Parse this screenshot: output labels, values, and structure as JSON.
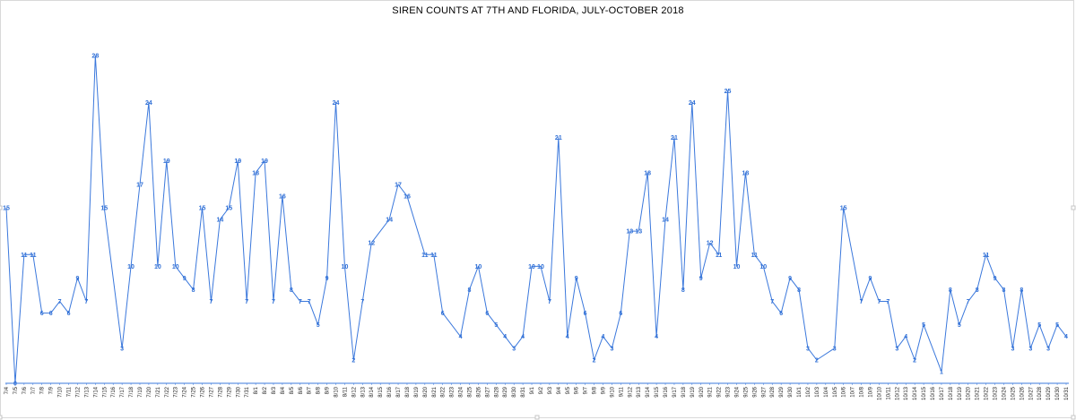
{
  "chart_data": {
    "type": "line",
    "title": "SIREN COUNTS AT 7TH AND FLORIDA, JULY-OCTOBER 2018",
    "xlabel": "",
    "ylabel": "",
    "ylim": [
      0,
      30
    ],
    "grid": false,
    "legend": "none",
    "line_color": "#3b78dc",
    "label_color": "#2f6fd6",
    "categories": [
      "7/4",
      "7/5",
      "7/6",
      "7/7",
      "7/8",
      "7/9",
      "7/10",
      "7/11",
      "7/12",
      "7/13",
      "7/14",
      "7/15",
      "7/16",
      "7/17",
      "7/18",
      "7/19",
      "7/20",
      "7/21",
      "7/22",
      "7/23",
      "7/24",
      "7/25",
      "7/26",
      "7/27",
      "7/28",
      "7/29",
      "7/30",
      "7/31",
      "8/1",
      "8/2",
      "8/3",
      "8/4",
      "8/5",
      "8/6",
      "8/7",
      "8/8",
      "8/9",
      "8/10",
      "8/11",
      "8/12",
      "8/13",
      "8/14",
      "8/15",
      "8/16",
      "8/17",
      "8/18",
      "8/19",
      "8/20",
      "8/21",
      "8/22",
      "8/23",
      "8/24",
      "8/25",
      "8/26",
      "8/27",
      "8/28",
      "8/29",
      "8/30",
      "8/31",
      "9/1",
      "9/2",
      "9/3",
      "9/4",
      "9/5",
      "9/6",
      "9/7",
      "9/8",
      "9/9",
      "9/10",
      "9/11",
      "9/12",
      "9/13",
      "9/14",
      "9/15",
      "9/16",
      "9/17",
      "9/18",
      "9/19",
      "9/20",
      "9/21",
      "9/22",
      "9/23",
      "9/24",
      "9/25",
      "9/26",
      "9/27",
      "9/28",
      "9/29",
      "9/30",
      "10/1",
      "10/2",
      "10/3",
      "10/4",
      "10/5",
      "10/6",
      "10/7",
      "10/8",
      "10/9",
      "10/10",
      "10/11",
      "10/12",
      "10/13",
      "10/14",
      "10/15",
      "10/16",
      "10/17",
      "10/18",
      "10/19",
      "10/20",
      "10/21",
      "10/22",
      "10/23",
      "10/24",
      "10/25",
      "10/26",
      "10/27",
      "10/28",
      "10/29",
      "10/30",
      "10/31"
    ],
    "series": [
      {
        "values": [
          15,
          0,
          11,
          11,
          6,
          6,
          7,
          6,
          9,
          7,
          28,
          15,
          null,
          3,
          10,
          17,
          24,
          10,
          19,
          10,
          9,
          8,
          15,
          7,
          14,
          15,
          19,
          7,
          18,
          19,
          7,
          16,
          8,
          7,
          7,
          5,
          9,
          24,
          10,
          2,
          7,
          12,
          null,
          14,
          17,
          16,
          null,
          11,
          11,
          6,
          null,
          4,
          8,
          10,
          6,
          5,
          4,
          3,
          4,
          10,
          10,
          7,
          21,
          4,
          9,
          6,
          2,
          4,
          3,
          6,
          13,
          13,
          18,
          4,
          14,
          21,
          8,
          24,
          9,
          12,
          11,
          25,
          10,
          18,
          11,
          10,
          7,
          6,
          9,
          8,
          3,
          2,
          null,
          3,
          15,
          null,
          7,
          9,
          7,
          7,
          3,
          4,
          2,
          5,
          null,
          1,
          8,
          5,
          7,
          8,
          11,
          9,
          8,
          3,
          8,
          3,
          5,
          3,
          5,
          4
        ]
      }
    ]
  }
}
